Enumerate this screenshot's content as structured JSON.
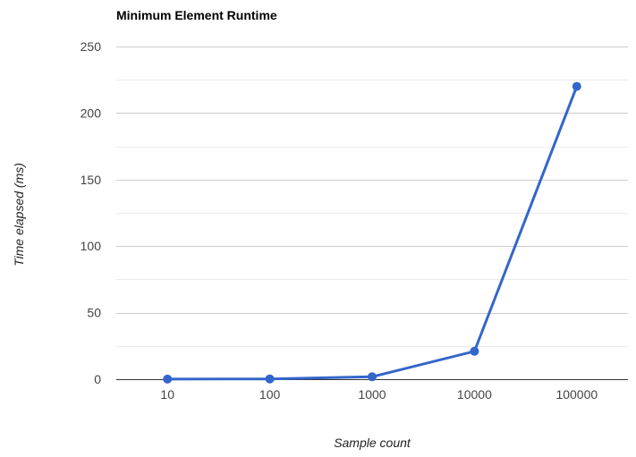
{
  "chart_data": {
    "type": "line",
    "title": "Minimum Element Runtime",
    "xlabel": "Sample count",
    "ylabel": "Time elapsed (ms)",
    "categories": [
      "10",
      "100",
      "1000",
      "10000",
      "100000"
    ],
    "series": [
      {
        "values": [
          0.1,
          0.2,
          1.8,
          21,
          220
        ]
      }
    ],
    "ylim": [
      0,
      250
    ],
    "yticks": [
      0,
      50,
      100,
      150,
      200,
      250
    ],
    "ytick_labels": [
      "0",
      "50",
      "100",
      "150",
      "200",
      "250"
    ],
    "grid": true,
    "minor_grid": true,
    "legend": "none",
    "colors": {
      "series": "#3366cc",
      "grid": "#cccccc",
      "minor_grid": "#ebebeb",
      "baseline": "#333333"
    }
  }
}
